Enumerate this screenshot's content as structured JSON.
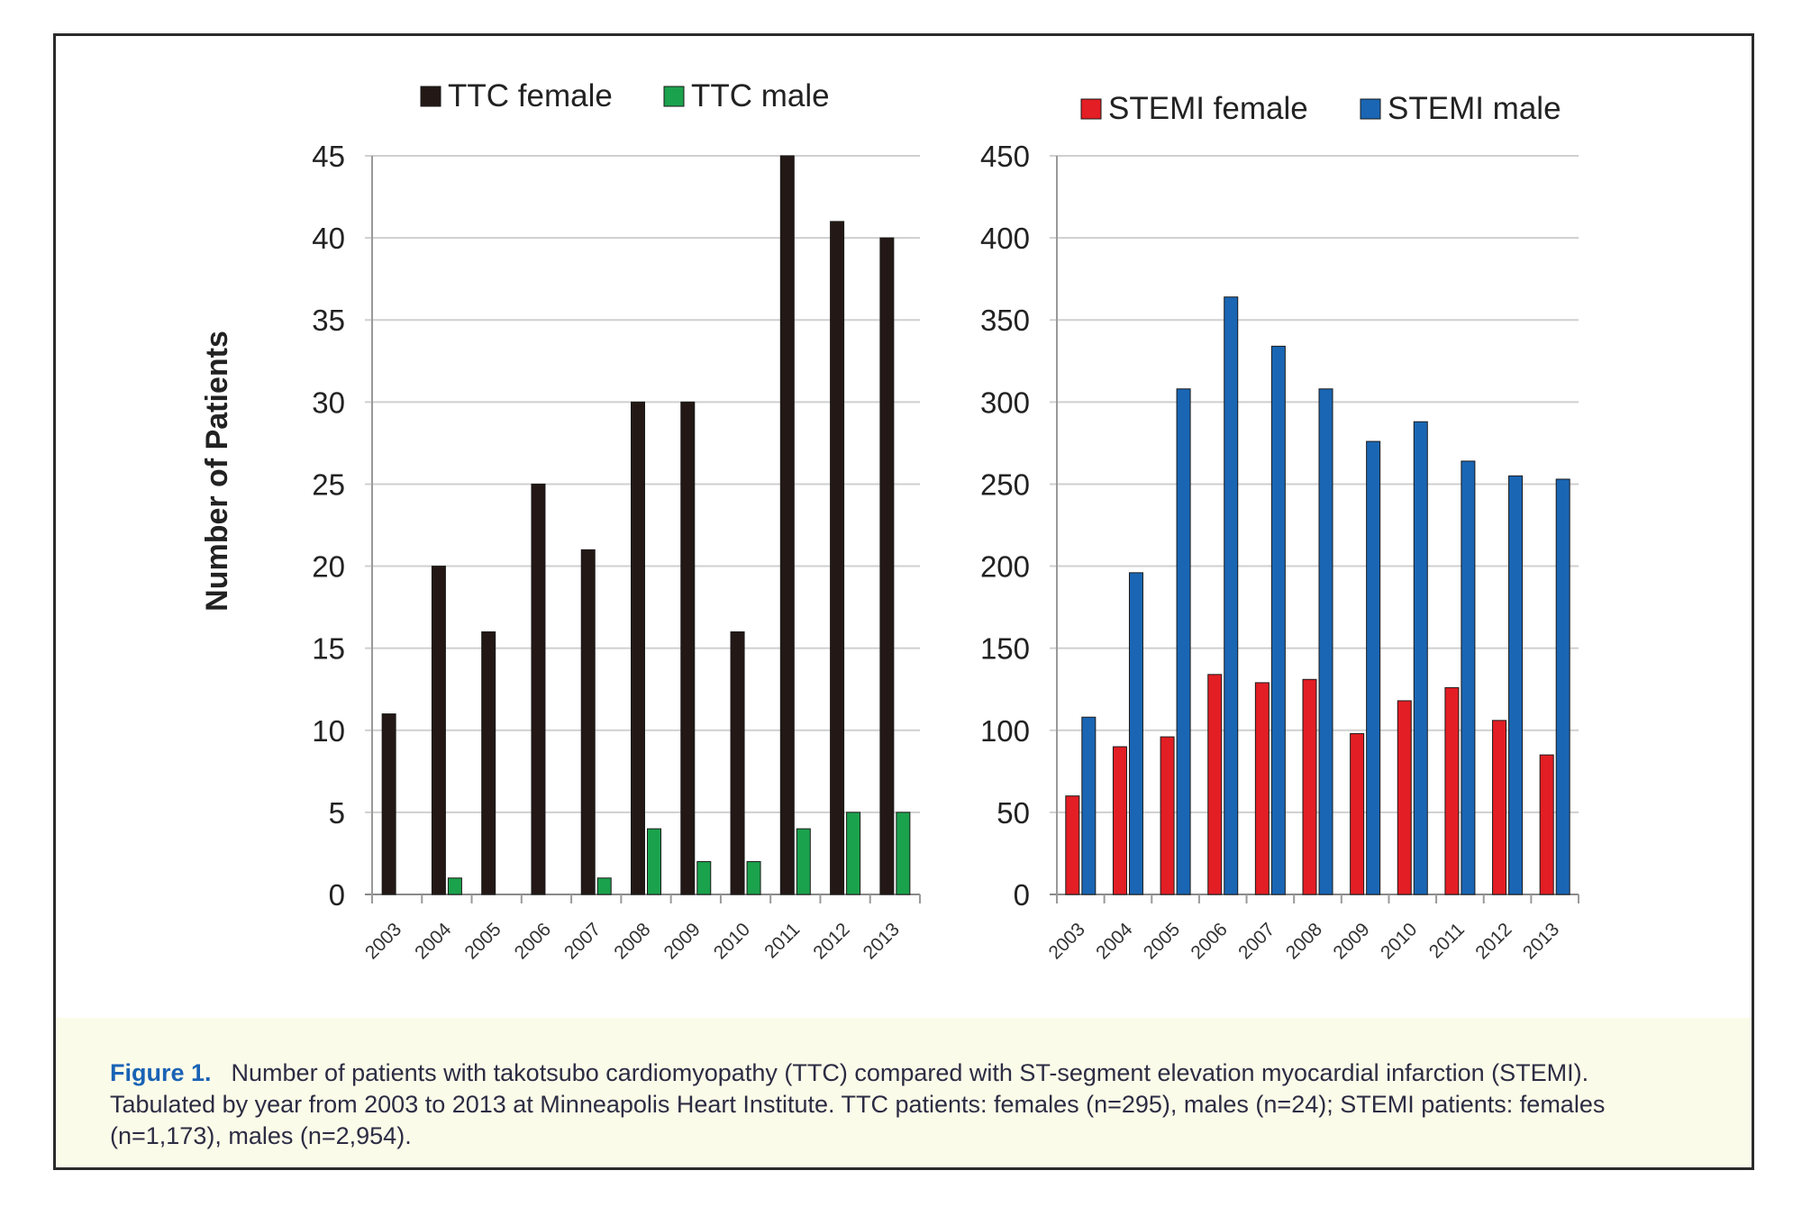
{
  "chart_data": [
    {
      "type": "bar",
      "categories": [
        "2003",
        "2004",
        "2005",
        "2006",
        "2007",
        "2008",
        "2009",
        "2010",
        "2011",
        "2012",
        "2013"
      ],
      "series": [
        {
          "name": "TTC female",
          "color": "#231815",
          "values": [
            11,
            20,
            16,
            25,
            21,
            30,
            30,
            16,
            45,
            41,
            40
          ]
        },
        {
          "name": "TTC male",
          "color": "#1ba24c",
          "values": [
            0,
            1,
            0,
            0,
            1,
            4,
            2,
            2,
            4,
            5,
            5
          ]
        }
      ],
      "ylim": [
        0,
        45
      ],
      "yticks": [
        0,
        5,
        10,
        15,
        20,
        25,
        30,
        35,
        40,
        45
      ],
      "ylabel": "Number of Patients",
      "xlabel": "",
      "grid": true,
      "legend": "top"
    },
    {
      "type": "bar",
      "categories": [
        "2003",
        "2004",
        "2005",
        "2006",
        "2007",
        "2008",
        "2009",
        "2010",
        "2011",
        "2012",
        "2013"
      ],
      "series": [
        {
          "name": "STEMI female",
          "color": "#e31e24",
          "values": [
            60,
            90,
            96,
            134,
            129,
            131,
            98,
            118,
            126,
            106,
            85
          ]
        },
        {
          "name": "STEMI male",
          "color": "#1a66b4",
          "values": [
            108,
            196,
            308,
            364,
            334,
            308,
            276,
            288,
            264,
            255,
            253
          ]
        }
      ],
      "ylim": [
        0,
        450
      ],
      "yticks": [
        0,
        50,
        100,
        150,
        200,
        250,
        300,
        350,
        400,
        450
      ],
      "ylabel": "",
      "xlabel": "",
      "grid": true,
      "legend": "top"
    }
  ],
  "caption": {
    "label": "Figure 1.",
    "text": "Number of patients with takotsubo cardiomyopathy (TTC) compared with ST-segment elevation myocardial infarction (STEMI). Tabulated by year from 2003 to 2013 at Minneapolis Heart Institute. TTC patients: females (n=295), males (n=24); STEMI patients: females (n=1,173), males (n=2,954)."
  }
}
